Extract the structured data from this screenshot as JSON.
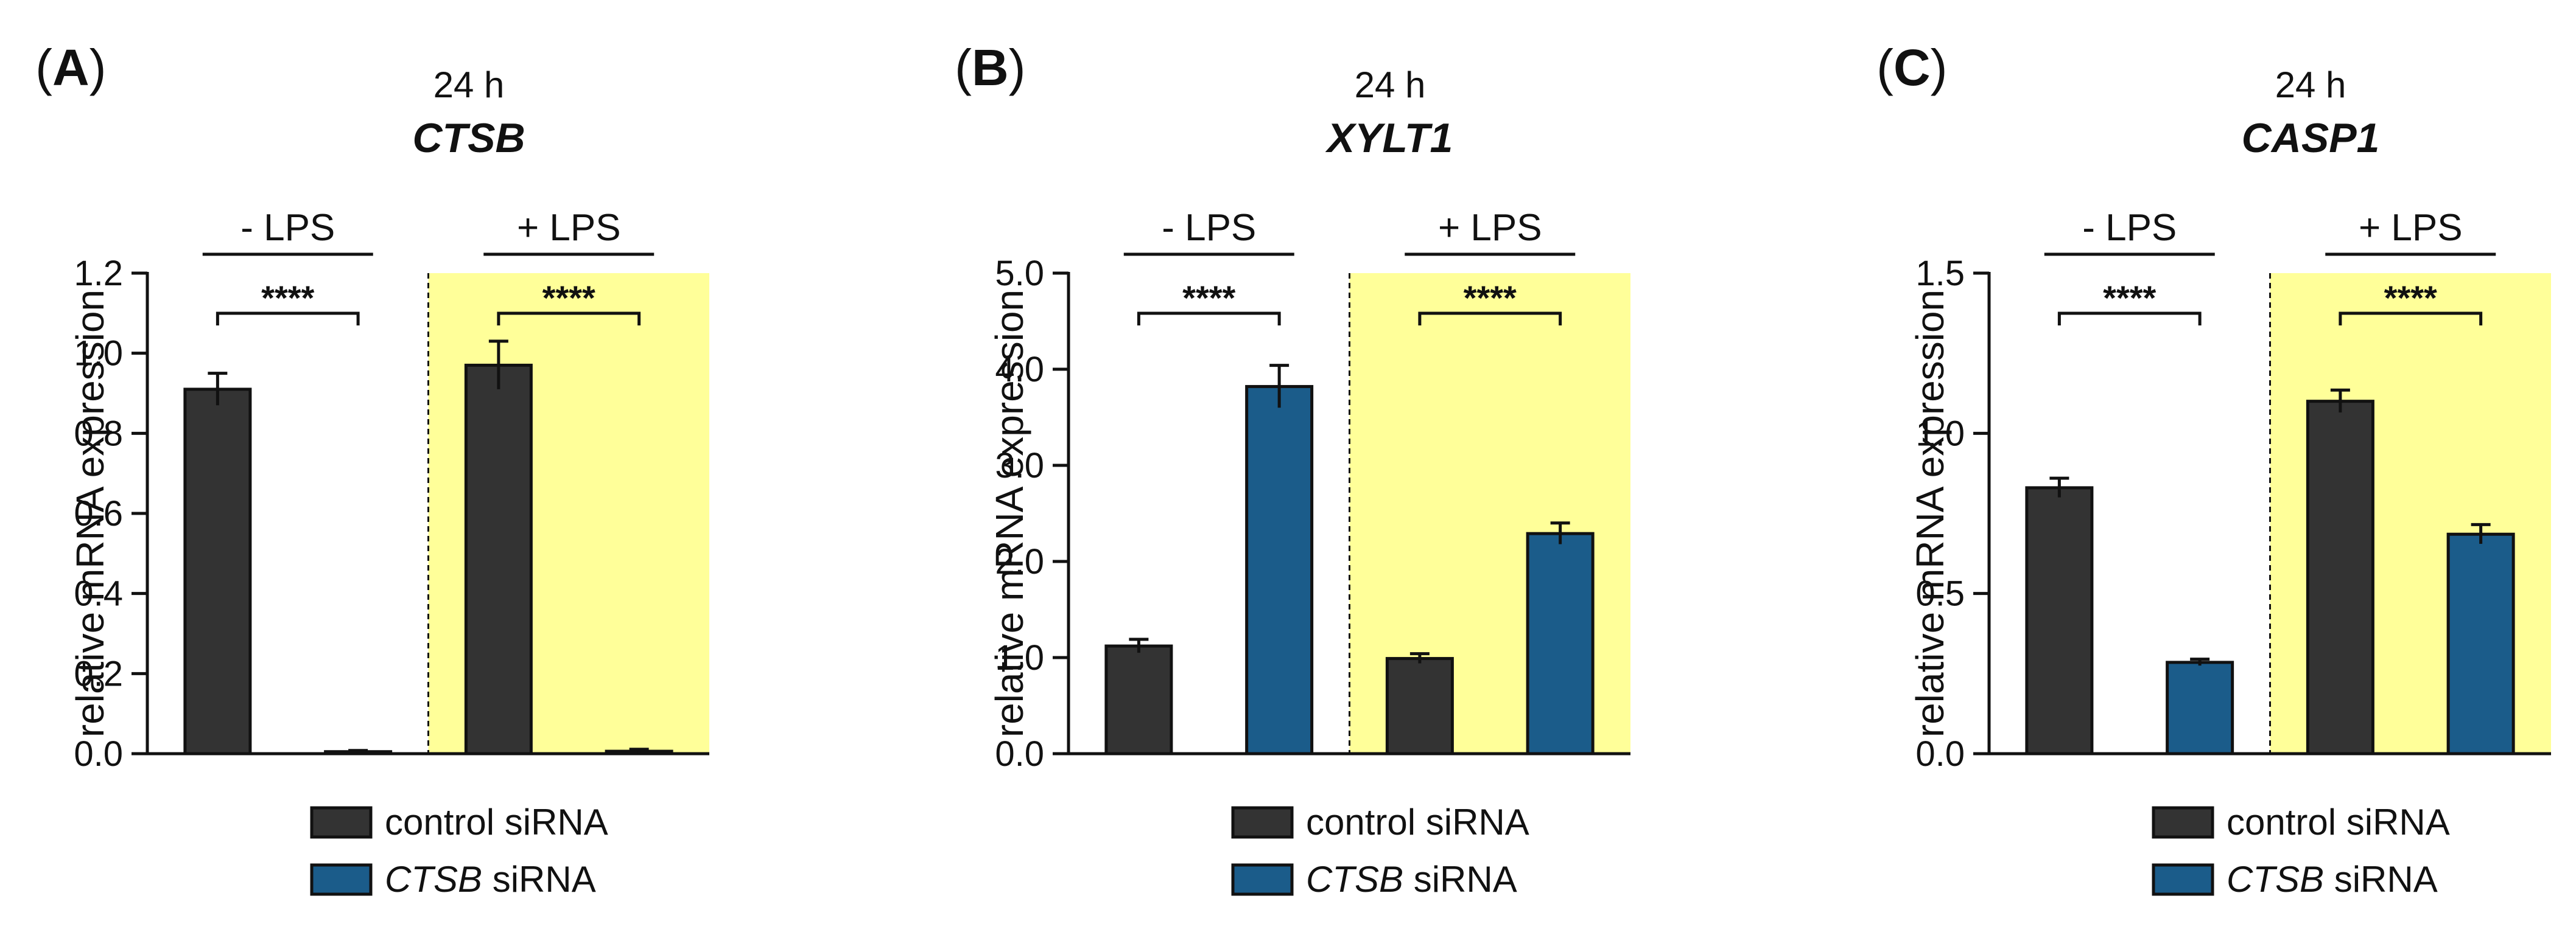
{
  "chart_data": [
    {
      "type": "bar",
      "panel": "A",
      "time": "24 h",
      "gene": "CTSB",
      "ylabel": "relative mRNA expression",
      "ylim": [
        0,
        1.2
      ],
      "yticks": [
        "0.0",
        "0.2",
        "0.4",
        "0.6",
        "0.8",
        "1.0",
        "1.2"
      ],
      "tick_values": [
        0,
        0.2,
        0.4,
        0.6,
        0.8,
        1.0,
        1.2
      ],
      "groups": [
        "- LPS",
        "+ LPS"
      ],
      "significance": [
        "****",
        "****"
      ],
      "series": [
        {
          "name": "control siRNA",
          "values": [
            0.91,
            0.97
          ],
          "errors": [
            0.04,
            0.06
          ]
        },
        {
          "name": "CTSB siRNA",
          "values": [
            0.005,
            0.006
          ],
          "errors": [
            0.003,
            0.005
          ]
        }
      ]
    },
    {
      "type": "bar",
      "panel": "B",
      "time": "24 h",
      "gene": "XYLT1",
      "ylabel": "relative mRNA expression",
      "ylim": [
        0,
        5.0
      ],
      "yticks": [
        "0.0",
        "1.0",
        "2.0",
        "3.0",
        "4.0",
        "5.0"
      ],
      "tick_values": [
        0,
        1,
        2,
        3,
        4,
        5
      ],
      "groups": [
        "- LPS",
        "+ LPS"
      ],
      "significance": [
        "****",
        "****"
      ],
      "series": [
        {
          "name": "control siRNA",
          "values": [
            1.12,
            0.99
          ],
          "errors": [
            0.07,
            0.05
          ]
        },
        {
          "name": "CTSB siRNA",
          "values": [
            3.82,
            2.29
          ],
          "errors": [
            0.22,
            0.11
          ]
        }
      ]
    },
    {
      "type": "bar",
      "panel": "C",
      "time": "24 h",
      "gene": "CASP1",
      "ylabel": "relative mRNA expression",
      "ylim": [
        0,
        1.5
      ],
      "yticks": [
        "0.0",
        "0.5",
        "1.0",
        "1.5"
      ],
      "tick_values": [
        0,
        0.5,
        1.0,
        1.5
      ],
      "groups": [
        "- LPS",
        "+ LPS"
      ],
      "significance": [
        "****",
        "****"
      ],
      "series": [
        {
          "name": "control siRNA",
          "values": [
            0.83,
            1.1
          ],
          "errors": [
            0.03,
            0.035
          ]
        },
        {
          "name": "CTSB siRNA",
          "values": [
            0.285,
            0.685
          ],
          "errors": [
            0.01,
            0.03
          ]
        }
      ]
    }
  ],
  "legend": {
    "items": [
      {
        "italic_part": "",
        "text": "control siRNA",
        "color": "#333333"
      },
      {
        "italic_part": "CTSB",
        "text": " siRNA",
        "color": "#1b5c8a"
      }
    ]
  },
  "colors": {
    "control": "#333333",
    "knockdown": "#1b5c8a",
    "lps_bg": "#ffff99"
  }
}
